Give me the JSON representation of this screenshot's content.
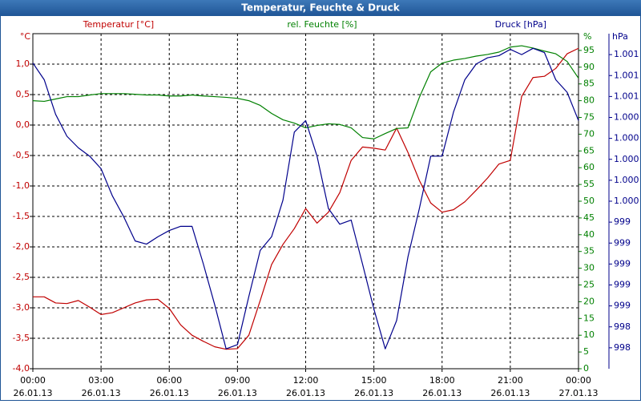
{
  "chart_data": {
    "type": "line",
    "title": "Temperatur, Feuchte & Druck",
    "ylabel": "Temperatur [°C]",
    "yunit": "°C",
    "ycolor": "#c00000",
    "y2label": "rel. Feuchte [%]",
    "y2unit": "%",
    "y2color": "#008000",
    "y3label": "Druck [hPa]",
    "y3unit": "hPa",
    "y3color": "#00008b",
    "grid": true,
    "x": [
      0,
      0.5,
      1,
      1.5,
      2,
      2.5,
      3,
      3.5,
      4,
      4.5,
      5,
      5.5,
      6,
      6.5,
      7,
      7.5,
      8,
      8.5,
      9,
      9.5,
      10,
      10.5,
      11,
      11.5,
      12,
      12.5,
      13,
      13.5,
      14,
      14.5,
      15,
      15.5,
      16,
      16.5,
      17,
      17.5,
      18,
      18.5,
      19,
      19.5,
      20,
      20.5,
      21,
      21.5,
      22,
      22.5,
      23,
      23.5,
      24
    ],
    "xlim": [
      0,
      24
    ],
    "xticks": [
      {
        "value": 0,
        "label": "00:00"
      },
      {
        "value": 3,
        "label": "03:00"
      },
      {
        "value": 6,
        "label": "06:00"
      },
      {
        "value": 9,
        "label": "09:00"
      },
      {
        "value": 12,
        "label": "12:00"
      },
      {
        "value": 15,
        "label": "15:00"
      },
      {
        "value": 18,
        "label": "18:00"
      },
      {
        "value": 21,
        "label": "21:00"
      },
      {
        "value": 24,
        "label": "00:00"
      }
    ],
    "xtick_dates": [
      "26.01.13",
      "26.01.13",
      "26.01.13",
      "26.01.13",
      "26.01.13",
      "26.01.13",
      "26.01.13",
      "26.01.13",
      "27.01.13"
    ],
    "ylim": [
      -4,
      1.5
    ],
    "yticks": [
      {
        "value": -4,
        "label": "-4,0"
      },
      {
        "value": -3.5,
        "label": "-3,5"
      },
      {
        "value": -3,
        "label": "-3,0"
      },
      {
        "value": -2.5,
        "label": "-2,5"
      },
      {
        "value": -2,
        "label": "-2,0"
      },
      {
        "value": -1.5,
        "label": "-1,5"
      },
      {
        "value": -1,
        "label": "-1,0"
      },
      {
        "value": -0.5,
        "label": "-0,5"
      },
      {
        "value": 0,
        "label": "0,0"
      },
      {
        "value": 0.5,
        "label": "0,5"
      },
      {
        "value": 1,
        "label": "1,0"
      }
    ],
    "y2lim": [
      0,
      100
    ],
    "y2ticks": [
      0,
      5,
      10,
      15,
      20,
      25,
      30,
      35,
      40,
      45,
      50,
      55,
      60,
      65,
      70,
      75,
      80,
      85,
      90,
      95
    ],
    "y3lim": [
      998.0,
      1001.2
    ],
    "y3ticks": [
      {
        "value": 998.2,
        "label": "998"
      },
      {
        "value": 998.4,
        "label": "998"
      },
      {
        "value": 998.6,
        "label": "999"
      },
      {
        "value": 998.8,
        "label": "999"
      },
      {
        "value": 999.0,
        "label": "999"
      },
      {
        "value": 999.2,
        "label": "999"
      },
      {
        "value": 999.4,
        "label": "999"
      },
      {
        "value": 999.6,
        "label": "1.000"
      },
      {
        "value": 999.8,
        "label": "1.000"
      },
      {
        "value": 1000.0,
        "label": "1.000"
      },
      {
        "value": 1000.2,
        "label": "1.000"
      },
      {
        "value": 1000.4,
        "label": "1.000"
      },
      {
        "value": 1000.6,
        "label": "1.001"
      },
      {
        "value": 1000.8,
        "label": "1.001"
      },
      {
        "value": 1001.0,
        "label": "1.001"
      }
    ],
    "series": [
      {
        "name": "Temperatur",
        "color": "#c00000",
        "axis": "y",
        "values": [
          -2.82,
          -2.82,
          -2.92,
          -2.93,
          -2.88,
          -2.99,
          -3.11,
          -3.08,
          -3.0,
          -2.92,
          -2.87,
          -2.86,
          -3.01,
          -3.28,
          -3.45,
          -3.55,
          -3.64,
          -3.68,
          -3.67,
          -3.45,
          -2.88,
          -2.29,
          -1.96,
          -1.7,
          -1.37,
          -1.61,
          -1.43,
          -1.11,
          -0.58,
          -0.36,
          -0.38,
          -0.41,
          -0.05,
          -0.45,
          -0.91,
          -1.28,
          -1.43,
          -1.39,
          -1.26,
          -1.07,
          -0.87,
          -0.64,
          -0.58,
          0.47,
          0.78,
          0.8,
          0.93,
          1.17,
          1.26
        ]
      },
      {
        "name": "rel. Feuchte",
        "color": "#008000",
        "axis": "y2",
        "values": [
          80.0,
          79.8,
          80.5,
          81.2,
          81.2,
          81.7,
          82.1,
          82.1,
          82.1,
          81.9,
          81.7,
          81.7,
          81.4,
          81.4,
          81.7,
          81.4,
          81.2,
          81.0,
          80.7,
          80.0,
          78.6,
          76.2,
          74.3,
          73.3,
          71.9,
          72.6,
          73.1,
          72.9,
          71.9,
          69.0,
          68.6,
          70.2,
          71.7,
          71.9,
          81.0,
          88.6,
          91.2,
          92.1,
          92.6,
          93.3,
          93.8,
          94.5,
          96.0,
          96.4,
          95.7,
          94.8,
          94.0,
          91.7,
          86.7
        ]
      },
      {
        "name": "Druck",
        "color": "#00008b",
        "axis": "y3",
        "values": [
          1000.92,
          1000.76,
          1000.43,
          1000.22,
          1000.11,
          1000.03,
          999.91,
          999.65,
          999.45,
          999.22,
          999.19,
          999.26,
          999.32,
          999.36,
          999.36,
          999.0,
          998.61,
          998.19,
          998.23,
          998.69,
          999.13,
          999.26,
          999.61,
          1000.26,
          1000.37,
          1000.03,
          999.53,
          999.38,
          999.42,
          999.0,
          998.57,
          998.19,
          998.46,
          999.07,
          999.53,
          1000.03,
          1000.03,
          1000.45,
          1000.76,
          1000.91,
          1000.97,
          1000.99,
          1001.05,
          1001.0,
          1001.06,
          1001.02,
          1000.76,
          1000.64,
          1000.37
        ]
      }
    ]
  }
}
